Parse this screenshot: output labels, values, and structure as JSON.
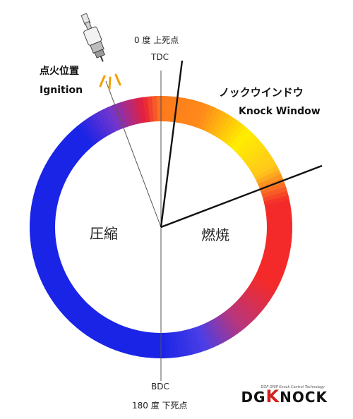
{
  "labels": {
    "tdc_jp": "0 度 上死点",
    "tdc": "TDC",
    "bdc": "BDC",
    "bdc_jp": "180 度 下死点",
    "ignition_jp": "点火位置",
    "ignition": "Ignition",
    "knock_window_jp": "ノックウインドウ",
    "knock_window": "Knock Window",
    "compression": "圧縮",
    "combustion": "燃焼"
  },
  "logo": {
    "text": "DGKNOCK",
    "tagline": "DGP GRIP Knock Control Technology"
  },
  "colors": {
    "compression": "#1a24e6",
    "ignition_red": "#e8203a",
    "knock_orange": "#ff8a1a",
    "knock_yellow": "#ffee00",
    "combustion_red": "#f42a2a",
    "logo_accent": "#d41f1f"
  }
}
